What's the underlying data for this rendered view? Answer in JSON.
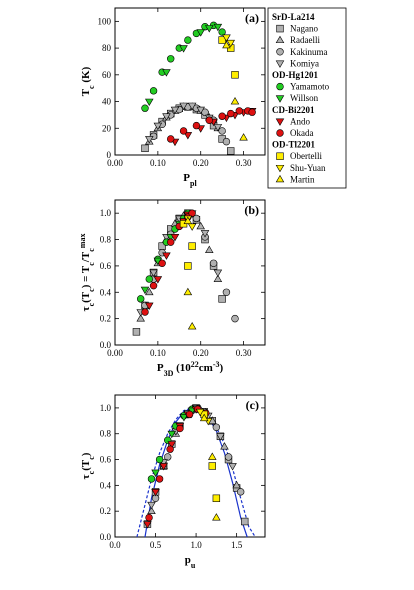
{
  "legend": {
    "groups": [
      {
        "title": "SrD-La214",
        "entries": [
          {
            "name": "Nagano",
            "marker": "square",
            "color": "#b0b0b0"
          },
          {
            "name": "Radaelli",
            "marker": "triangle-up",
            "color": "#b0b0b0"
          },
          {
            "name": "Kakinuma",
            "marker": "circle",
            "color": "#b0b0b0"
          },
          {
            "name": "Komiya",
            "marker": "triangle-down",
            "color": "#b0b0b0"
          }
        ]
      },
      {
        "title": "OD-Hg1201",
        "entries": [
          {
            "name": "Yamamoto",
            "marker": "circle",
            "color": "#22cc22"
          },
          {
            "name": "Willson",
            "marker": "triangle-down",
            "color": "#22cc22"
          }
        ]
      },
      {
        "title": "CD-Bi2201",
        "entries": [
          {
            "name": "Ando",
            "marker": "triangle-down",
            "color": "#dd1111"
          },
          {
            "name": "Okada",
            "marker": "circle",
            "color": "#dd1111"
          }
        ]
      },
      {
        "title": "OD-Tl2201",
        "entries": [
          {
            "name": "Obertelli",
            "marker": "square",
            "color": "#ffee00"
          },
          {
            "name": "Shu-Yuan",
            "marker": "triangle-down",
            "color": "#ffee00"
          },
          {
            "name": "Martin",
            "marker": "triangle-up",
            "color": "#ffee00"
          }
        ]
      }
    ]
  },
  "chart_data": [
    {
      "type": "scatter",
      "panel_label": "(a)",
      "xlabel": "P_pl",
      "ylabel": "T_c (K)",
      "xlim": [
        0,
        0.35
      ],
      "ylim": [
        0,
        110
      ],
      "xticks": [
        "0.00",
        "0.10",
        "0.20",
        "0.30"
      ],
      "xtick_values": [
        0,
        0.1,
        0.2,
        0.3
      ],
      "yticks": [
        "0",
        "20",
        "40",
        "60",
        "80",
        "100"
      ],
      "ytick_values": [
        0,
        20,
        40,
        60,
        80,
        100
      ],
      "series": [
        {
          "name": "Nagano",
          "x": [
            0.07,
            0.09,
            0.11,
            0.13,
            0.15,
            0.17,
            0.19,
            0.21,
            0.23,
            0.25,
            0.27
          ],
          "y": [
            5,
            15,
            25,
            31,
            35,
            36,
            34,
            30,
            22,
            12,
            3
          ]
        },
        {
          "name": "Radaelli",
          "x": [
            0.08,
            0.1,
            0.12,
            0.14,
            0.16,
            0.18,
            0.2,
            0.22,
            0.24
          ],
          "y": [
            10,
            20,
            28,
            33,
            36,
            36,
            33,
            28,
            20
          ]
        },
        {
          "name": "Kakinuma",
          "x": [
            0.09,
            0.11,
            0.13,
            0.15,
            0.17,
            0.19,
            0.21,
            0.23,
            0.25,
            0.26
          ],
          "y": [
            14,
            23,
            30,
            34,
            36,
            35,
            32,
            26,
            18,
            10
          ]
        },
        {
          "name": "Komiya",
          "x": [
            0.08,
            0.1,
            0.12,
            0.14,
            0.16,
            0.18,
            0.2,
            0.22,
            0.24
          ],
          "y": [
            12,
            22,
            29,
            34,
            37,
            37,
            34,
            28,
            21
          ]
        },
        {
          "name": "Yamamoto",
          "x": [
            0.07,
            0.09,
            0.11,
            0.13,
            0.15,
            0.17,
            0.19,
            0.21,
            0.23,
            0.25
          ],
          "y": [
            35,
            48,
            62,
            72,
            80,
            86,
            91,
            96,
            97,
            92
          ]
        },
        {
          "name": "Willson",
          "x": [
            0.08,
            0.12,
            0.16,
            0.2,
            0.22,
            0.24,
            0.26
          ],
          "y": [
            40,
            62,
            80,
            92,
            95,
            96,
            88
          ]
        },
        {
          "name": "Ando",
          "x": [
            0.14,
            0.17,
            0.2,
            0.23,
            0.26,
            0.28,
            0.3,
            0.32
          ],
          "y": [
            10,
            15,
            20,
            25,
            28,
            30,
            32,
            33
          ]
        },
        {
          "name": "Okada",
          "x": [
            0.13,
            0.16,
            0.19,
            0.22,
            0.25,
            0.27,
            0.29,
            0.31,
            0.32
          ],
          "y": [
            12,
            18,
            22,
            26,
            29,
            31,
            33,
            33,
            32
          ]
        },
        {
          "name": "Obertelli",
          "x": [
            0.25,
            0.27,
            0.28
          ],
          "y": [
            86,
            80,
            60
          ]
        },
        {
          "name": "Shu-Yuan",
          "x": [
            0.26,
            0.27
          ],
          "y": [
            88,
            84
          ]
        },
        {
          "name": "Martin",
          "x": [
            0.26,
            0.28,
            0.3
          ],
          "y": [
            82,
            40,
            13
          ]
        }
      ]
    },
    {
      "type": "scatter",
      "panel_label": "(b)",
      "xlabel": "P_3D (10^22 cm^-3)",
      "ylabel": "τ_c(T_c) = T_c/T_c^max",
      "xlim": [
        0,
        0.35
      ],
      "ylim": [
        0,
        1.1
      ],
      "xticks": [
        "0.00",
        "0.10",
        "0.20",
        "0.30"
      ],
      "xtick_values": [
        0,
        0.1,
        0.2,
        0.3
      ],
      "yticks": [
        "0.0",
        "0.2",
        "0.4",
        "0.6",
        "0.8",
        "1.0"
      ],
      "ytick_values": [
        0,
        0.2,
        0.4,
        0.6,
        0.8,
        1.0
      ],
      "series": [
        {
          "name": "Nagano",
          "x": [
            0.05,
            0.07,
            0.09,
            0.11,
            0.13,
            0.15,
            0.17,
            0.19,
            0.21,
            0.23,
            0.25
          ],
          "y": [
            0.1,
            0.3,
            0.55,
            0.75,
            0.88,
            0.96,
            1.0,
            0.95,
            0.8,
            0.6,
            0.35
          ]
        },
        {
          "name": "Radaelli",
          "x": [
            0.06,
            0.08,
            0.1,
            0.12,
            0.14,
            0.16,
            0.18,
            0.2,
            0.22,
            0.24
          ],
          "y": [
            0.2,
            0.4,
            0.62,
            0.8,
            0.92,
            0.98,
            0.99,
            0.9,
            0.72,
            0.5
          ]
        },
        {
          "name": "Kakinuma",
          "x": [
            0.07,
            0.09,
            0.11,
            0.13,
            0.15,
            0.17,
            0.19,
            0.21,
            0.23,
            0.26,
            0.28
          ],
          "y": [
            0.3,
            0.5,
            0.7,
            0.84,
            0.94,
            1.0,
            0.96,
            0.82,
            0.62,
            0.4,
            0.2
          ]
        },
        {
          "name": "Komiya",
          "x": [
            0.06,
            0.09,
            0.12,
            0.15,
            0.18,
            0.21,
            0.24
          ],
          "y": [
            0.25,
            0.55,
            0.82,
            0.96,
            1.0,
            0.85,
            0.55
          ]
        },
        {
          "name": "Yamamoto",
          "x": [
            0.06,
            0.08,
            0.1,
            0.12,
            0.14,
            0.16,
            0.17
          ],
          "y": [
            0.35,
            0.5,
            0.65,
            0.78,
            0.88,
            0.96,
            1.0
          ]
        },
        {
          "name": "Willson",
          "x": [
            0.07,
            0.1,
            0.13,
            0.15,
            0.17
          ],
          "y": [
            0.42,
            0.64,
            0.82,
            0.92,
            0.98
          ]
        },
        {
          "name": "Ando",
          "x": [
            0.08,
            0.1,
            0.12,
            0.14,
            0.16,
            0.17
          ],
          "y": [
            0.3,
            0.5,
            0.68,
            0.82,
            0.94,
            0.99
          ]
        },
        {
          "name": "Okada",
          "x": [
            0.07,
            0.09,
            0.11,
            0.13,
            0.15,
            0.17,
            0.18
          ],
          "y": [
            0.25,
            0.45,
            0.62,
            0.78,
            0.9,
            0.97,
            1.0
          ]
        },
        {
          "name": "Obertelli",
          "x": [
            0.16,
            0.17,
            0.18
          ],
          "y": [
            0.92,
            0.6,
            0.75
          ]
        },
        {
          "name": "Shu-Yuan",
          "x": [
            0.17,
            0.18
          ],
          "y": [
            0.96,
            0.9
          ]
        },
        {
          "name": "Martin",
          "x": [
            0.17,
            0.17,
            0.18
          ],
          "y": [
            0.94,
            0.4,
            0.14
          ]
        }
      ]
    },
    {
      "type": "scatter",
      "panel_label": "(c)",
      "xlabel": "p_u",
      "ylabel": "τ_c(T_c)",
      "xlim": [
        0,
        1.85
      ],
      "ylim": [
        0,
        1.1
      ],
      "xticks": [
        "0.0",
        "0.5",
        "1.0",
        "1.5"
      ],
      "xtick_values": [
        0,
        0.5,
        1.0,
        1.5
      ],
      "yticks": [
        "0.0",
        "0.2",
        "0.4",
        "0.6",
        "0.8",
        "1.0"
      ],
      "ytick_values": [
        0,
        0.2,
        0.4,
        0.6,
        0.8,
        1.0
      ],
      "curves": [
        {
          "name": "solid",
          "style": "solid",
          "color": "#1a33cc",
          "x": [
            0.37,
            0.45,
            0.55,
            0.65,
            0.75,
            0.85,
            0.95,
            1.05,
            1.15,
            1.25,
            1.35,
            1.45,
            1.55,
            1.63
          ],
          "y": [
            0,
            0.3,
            0.56,
            0.75,
            0.89,
            0.97,
            1.0,
            0.99,
            0.93,
            0.82,
            0.65,
            0.42,
            0.15,
            0
          ]
        },
        {
          "name": "dashed",
          "style": "dashed",
          "color": "#1a33cc",
          "x": [
            0.27,
            0.35,
            0.45,
            0.55,
            0.65,
            0.75,
            0.85,
            0.95,
            1.05,
            1.15,
            1.25,
            1.35,
            1.45,
            1.55,
            1.65,
            1.73
          ],
          "y": [
            0,
            0.2,
            0.45,
            0.65,
            0.8,
            0.91,
            0.98,
            1.0,
            0.99,
            0.94,
            0.85,
            0.72,
            0.53,
            0.3,
            0.08,
            0
          ]
        }
      ],
      "series": [
        {
          "name": "Nagano",
          "x": [
            0.4,
            0.5,
            0.6,
            0.7,
            0.8,
            0.9,
            1.0,
            1.1,
            1.2,
            1.3,
            1.4,
            1.5,
            1.6
          ],
          "y": [
            0.1,
            0.35,
            0.55,
            0.72,
            0.86,
            0.95,
            1.0,
            0.97,
            0.9,
            0.78,
            0.6,
            0.38,
            0.12
          ]
        },
        {
          "name": "Radaelli",
          "x": [
            0.45,
            0.6,
            0.75,
            0.9,
            1.05,
            1.2,
            1.35,
            1.5
          ],
          "y": [
            0.2,
            0.55,
            0.8,
            0.95,
            0.99,
            0.9,
            0.7,
            0.4
          ]
        },
        {
          "name": "Kakinuma",
          "x": [
            0.5,
            0.65,
            0.8,
            0.95,
            1.1,
            1.25,
            1.4,
            1.55
          ],
          "y": [
            0.3,
            0.62,
            0.85,
            0.98,
            0.97,
            0.85,
            0.62,
            0.35
          ]
        },
        {
          "name": "Komiya",
          "x": [
            0.45,
            0.6,
            0.75,
            0.9,
            1.0,
            1.15,
            1.3,
            1.45
          ],
          "y": [
            0.25,
            0.58,
            0.82,
            0.96,
            1.0,
            0.94,
            0.78,
            0.55
          ]
        },
        {
          "name": "Yamamoto",
          "x": [
            0.45,
            0.55,
            0.65,
            0.75,
            0.85,
            0.95
          ],
          "y": [
            0.45,
            0.6,
            0.75,
            0.86,
            0.94,
            0.99
          ]
        },
        {
          "name": "Willson",
          "x": [
            0.5,
            0.7,
            0.85,
            0.95
          ],
          "y": [
            0.5,
            0.8,
            0.93,
            0.98
          ]
        },
        {
          "name": "Ando",
          "x": [
            0.4,
            0.5,
            0.6,
            0.7,
            0.8,
            0.9,
            1.0,
            1.1
          ],
          "y": [
            0.1,
            0.35,
            0.55,
            0.72,
            0.86,
            0.95,
            0.99,
            0.96
          ]
        },
        {
          "name": "Okada",
          "x": [
            0.42,
            0.55,
            0.68,
            0.8,
            0.92,
            1.02,
            1.12
          ],
          "y": [
            0.15,
            0.45,
            0.68,
            0.84,
            0.95,
            0.99,
            0.96
          ]
        },
        {
          "name": "Obertelli",
          "x": [
            1.1,
            1.2,
            1.25
          ],
          "y": [
            0.95,
            0.55,
            0.3
          ]
        },
        {
          "name": "Shu-Yuan",
          "x": [
            1.05,
            1.15
          ],
          "y": [
            0.97,
            0.9
          ]
        },
        {
          "name": "Martin",
          "x": [
            1.1,
            1.2,
            1.25
          ],
          "y": [
            0.92,
            0.62,
            0.15
          ]
        }
      ]
    }
  ]
}
